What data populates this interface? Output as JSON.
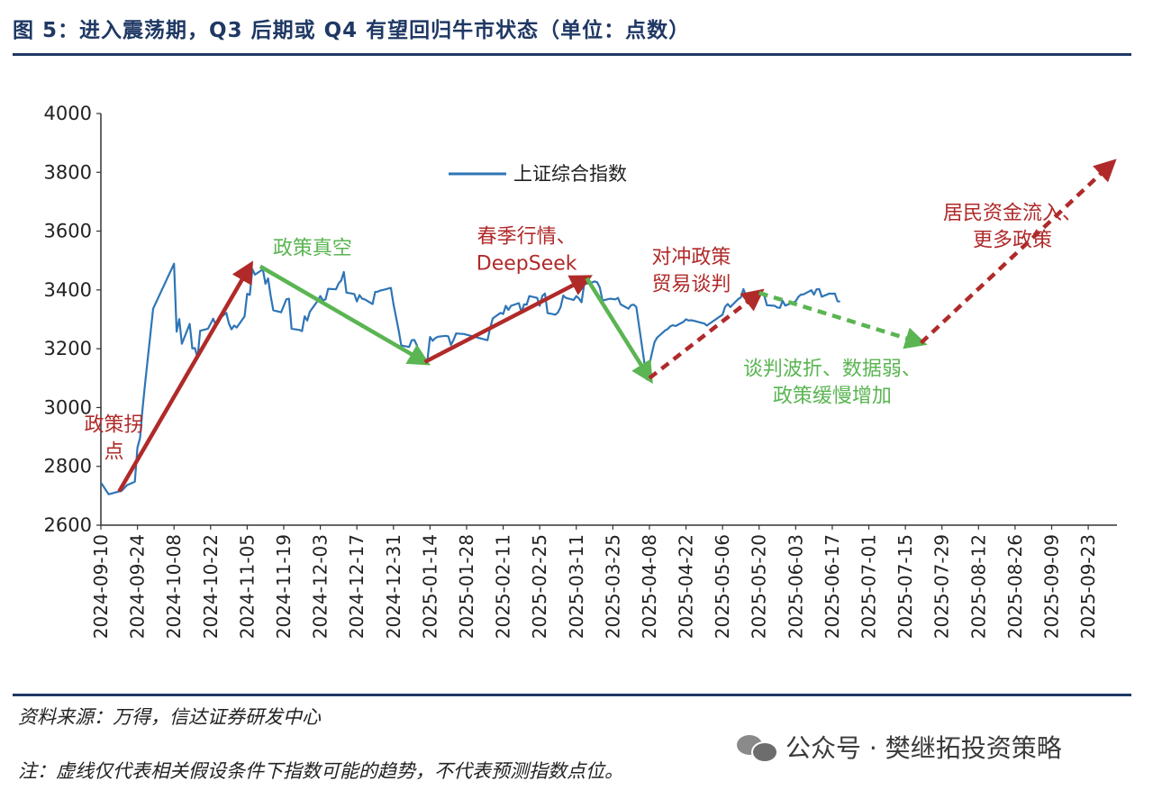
{
  "header": {
    "title": "图 5：进入震荡期，Q3 后期或 Q4 有望回归牛市状态（单位：点数）"
  },
  "footer": {
    "source": "资料来源：万得，信达证券研发中心",
    "note": "注：虚线仅代表相关假设条件下指数可能的趋势，不代表预测指数点位。"
  },
  "watermark": {
    "text": "公众号 · 樊继拓投资策略"
  },
  "colors": {
    "series": "#2e75b6",
    "red": "#b02a2a",
    "green": "#5ab552",
    "axis": "#333333",
    "title": "#1f3864"
  },
  "chart_data": {
    "type": "line",
    "title": "",
    "xlabel": "",
    "ylabel": "",
    "ylim": [
      2600,
      4000
    ],
    "yticks": [
      2600,
      2800,
      3000,
      3200,
      3400,
      3600,
      3800,
      4000
    ],
    "xlim": [
      "2024-09-10",
      "2025-10-04"
    ],
    "xticks": [
      "2024-09-10",
      "2024-09-24",
      "2024-10-08",
      "2024-10-22",
      "2024-11-05",
      "2024-11-19",
      "2024-12-03",
      "2024-12-17",
      "2024-12-31",
      "2025-01-14",
      "2025-01-28",
      "2025-02-11",
      "2025-02-25",
      "2025-03-11",
      "2025-03-25",
      "2025-04-08",
      "2025-04-22",
      "2025-05-06",
      "2025-05-20",
      "2025-06-03",
      "2025-06-17",
      "2025-07-01",
      "2025-07-15",
      "2025-07-29",
      "2025-08-12",
      "2025-08-26",
      "2025-09-09",
      "2025-09-23"
    ],
    "legend": {
      "position": "top-left",
      "label": "上证综合指数"
    },
    "series": [
      {
        "name": "上证综合指数",
        "points": [
          [
            "2024-09-10",
            2745
          ],
          [
            "2024-09-12",
            2718
          ],
          [
            "2024-09-13",
            2705
          ],
          [
            "2024-09-18",
            2717
          ],
          [
            "2024-09-20",
            2736
          ],
          [
            "2024-09-23",
            2748
          ],
          [
            "2024-09-24",
            2864
          ],
          [
            "2024-09-25",
            2897
          ],
          [
            "2024-09-26",
            3001
          ],
          [
            "2024-09-27",
            3088
          ],
          [
            "2024-09-30",
            3336
          ],
          [
            "2024-10-08",
            3489
          ],
          [
            "2024-10-09",
            3258
          ],
          [
            "2024-10-10",
            3301
          ],
          [
            "2024-10-11",
            3217
          ],
          [
            "2024-10-14",
            3284
          ],
          [
            "2024-10-15",
            3201
          ],
          [
            "2024-10-16",
            3202
          ],
          [
            "2024-10-17",
            3169
          ],
          [
            "2024-10-18",
            3261
          ],
          [
            "2024-10-21",
            3268
          ],
          [
            "2024-10-22",
            3285
          ],
          [
            "2024-10-23",
            3302
          ],
          [
            "2024-10-24",
            3280
          ],
          [
            "2024-10-25",
            3300
          ],
          [
            "2024-10-28",
            3322
          ],
          [
            "2024-10-29",
            3286
          ],
          [
            "2024-10-30",
            3266
          ],
          [
            "2024-10-31",
            3279
          ],
          [
            "2024-11-01",
            3272
          ],
          [
            "2024-11-04",
            3310
          ],
          [
            "2024-11-05",
            3387
          ],
          [
            "2024-11-06",
            3383
          ],
          [
            "2024-11-07",
            3470
          ],
          [
            "2024-11-08",
            3452
          ],
          [
            "2024-11-11",
            3470
          ],
          [
            "2024-11-12",
            3421
          ],
          [
            "2024-11-13",
            3439
          ],
          [
            "2024-11-14",
            3380
          ],
          [
            "2024-11-15",
            3331
          ],
          [
            "2024-11-18",
            3324
          ],
          [
            "2024-11-19",
            3346
          ],
          [
            "2024-11-20",
            3368
          ],
          [
            "2024-11-21",
            3370
          ],
          [
            "2024-11-22",
            3268
          ],
          [
            "2024-11-25",
            3264
          ],
          [
            "2024-11-26",
            3260
          ],
          [
            "2024-11-27",
            3310
          ],
          [
            "2024-11-28",
            3296
          ],
          [
            "2024-11-29",
            3326
          ],
          [
            "2024-12-02",
            3363
          ],
          [
            "2024-12-03",
            3379
          ],
          [
            "2024-12-04",
            3364
          ],
          [
            "2024-12-05",
            3368
          ],
          [
            "2024-12-06",
            3404
          ],
          [
            "2024-12-09",
            3402
          ],
          [
            "2024-12-10",
            3422
          ],
          [
            "2024-12-11",
            3432
          ],
          [
            "2024-12-12",
            3461
          ],
          [
            "2024-12-13",
            3391
          ],
          [
            "2024-12-16",
            3386
          ],
          [
            "2024-12-17",
            3361
          ],
          [
            "2024-12-18",
            3382
          ],
          [
            "2024-12-19",
            3370
          ],
          [
            "2024-12-20",
            3368
          ],
          [
            "2024-12-23",
            3352
          ],
          [
            "2024-12-24",
            3393
          ],
          [
            "2024-12-25",
            3394
          ],
          [
            "2024-12-26",
            3398
          ],
          [
            "2024-12-27",
            3400
          ],
          [
            "2024-12-30",
            3407
          ],
          [
            "2024-12-31",
            3352
          ],
          [
            "2025-01-02",
            3262
          ],
          [
            "2025-01-03",
            3211
          ],
          [
            "2025-01-06",
            3206
          ],
          [
            "2025-01-07",
            3229
          ],
          [
            "2025-01-08",
            3230
          ],
          [
            "2025-01-09",
            3211
          ],
          [
            "2025-01-10",
            3169
          ],
          [
            "2025-01-13",
            3161
          ],
          [
            "2025-01-14",
            3240
          ],
          [
            "2025-01-15",
            3227
          ],
          [
            "2025-01-16",
            3236
          ],
          [
            "2025-01-17",
            3241
          ],
          [
            "2025-01-20",
            3244
          ],
          [
            "2025-01-21",
            3242
          ],
          [
            "2025-01-22",
            3213
          ],
          [
            "2025-01-23",
            3230
          ],
          [
            "2025-01-24",
            3252
          ],
          [
            "2025-01-27",
            3250
          ],
          [
            "2025-02-05",
            3229
          ],
          [
            "2025-02-06",
            3270
          ],
          [
            "2025-02-07",
            3303
          ],
          [
            "2025-02-10",
            3322
          ],
          [
            "2025-02-11",
            3318
          ],
          [
            "2025-02-12",
            3346
          ],
          [
            "2025-02-13",
            3332
          ],
          [
            "2025-02-14",
            3346
          ],
          [
            "2025-02-17",
            3355
          ],
          [
            "2025-02-18",
            3324
          ],
          [
            "2025-02-19",
            3351
          ],
          [
            "2025-02-20",
            3350
          ],
          [
            "2025-02-21",
            3379
          ],
          [
            "2025-02-24",
            3373
          ],
          [
            "2025-02-25",
            3346
          ],
          [
            "2025-02-26",
            3380
          ],
          [
            "2025-02-27",
            3388
          ],
          [
            "2025-02-28",
            3321
          ],
          [
            "2025-03-03",
            3316
          ],
          [
            "2025-03-04",
            3324
          ],
          [
            "2025-03-05",
            3342
          ],
          [
            "2025-03-06",
            3381
          ],
          [
            "2025-03-07",
            3373
          ],
          [
            "2025-03-10",
            3366
          ],
          [
            "2025-03-11",
            3379
          ],
          [
            "2025-03-12",
            3371
          ],
          [
            "2025-03-13",
            3358
          ],
          [
            "2025-03-14",
            3419
          ],
          [
            "2025-03-17",
            3426
          ],
          [
            "2025-03-18",
            3429
          ],
          [
            "2025-03-19",
            3426
          ],
          [
            "2025-03-20",
            3408
          ],
          [
            "2025-03-21",
            3364
          ],
          [
            "2025-03-24",
            3370
          ],
          [
            "2025-03-25",
            3369
          ],
          [
            "2025-03-26",
            3368
          ],
          [
            "2025-03-27",
            3373
          ],
          [
            "2025-03-28",
            3351
          ],
          [
            "2025-03-31",
            3336
          ],
          [
            "2025-04-01",
            3348
          ],
          [
            "2025-04-02",
            3350
          ],
          [
            "2025-04-03",
            3342
          ],
          [
            "2025-04-07",
            3096
          ],
          [
            "2025-04-08",
            3145
          ],
          [
            "2025-04-09",
            3186
          ],
          [
            "2025-04-10",
            3223
          ],
          [
            "2025-04-11",
            3238
          ],
          [
            "2025-04-14",
            3262
          ],
          [
            "2025-04-15",
            3267
          ],
          [
            "2025-04-16",
            3276
          ],
          [
            "2025-04-17",
            3280
          ],
          [
            "2025-04-18",
            3277
          ],
          [
            "2025-04-21",
            3291
          ],
          [
            "2025-04-22",
            3300
          ],
          [
            "2025-04-23",
            3296
          ],
          [
            "2025-04-24",
            3297
          ],
          [
            "2025-04-25",
            3295
          ],
          [
            "2025-04-28",
            3288
          ],
          [
            "2025-04-29",
            3286
          ],
          [
            "2025-04-30",
            3279
          ],
          [
            "2025-05-06",
            3316
          ],
          [
            "2025-05-07",
            3343
          ],
          [
            "2025-05-08",
            3352
          ],
          [
            "2025-05-09",
            3342
          ],
          [
            "2025-05-12",
            3369
          ],
          [
            "2025-05-13",
            3374
          ],
          [
            "2025-05-14",
            3403
          ],
          [
            "2025-05-15",
            3380
          ],
          [
            "2025-05-16",
            3367
          ],
          [
            "2025-05-19",
            3367
          ],
          [
            "2025-05-20",
            3381
          ],
          [
            "2025-05-21",
            3387
          ],
          [
            "2025-05-22",
            3380
          ],
          [
            "2025-05-23",
            3348
          ],
          [
            "2025-05-26",
            3346
          ],
          [
            "2025-05-27",
            3340
          ],
          [
            "2025-05-28",
            3339
          ],
          [
            "2025-05-29",
            3363
          ],
          [
            "2025-05-30",
            3347
          ],
          [
            "2025-06-03",
            3361
          ],
          [
            "2025-06-04",
            3376
          ],
          [
            "2025-06-05",
            3384
          ],
          [
            "2025-06-06",
            3385
          ],
          [
            "2025-06-09",
            3399
          ],
          [
            "2025-06-10",
            3384
          ],
          [
            "2025-06-11",
            3402
          ],
          [
            "2025-06-12",
            3403
          ],
          [
            "2025-06-13",
            3377
          ],
          [
            "2025-06-16",
            3388
          ],
          [
            "2025-06-17",
            3387
          ],
          [
            "2025-06-18",
            3388
          ],
          [
            "2025-06-19",
            3362
          ],
          [
            "2025-06-20",
            3360
          ]
        ]
      }
    ],
    "arrows": [
      {
        "color": "red",
        "style": "solid",
        "from": [
          "2024-09-17",
          2715
        ],
        "to": [
          "2024-11-06",
          3480
        ]
      },
      {
        "color": "green",
        "style": "solid",
        "from": [
          "2024-11-10",
          3480
        ],
        "to": [
          "2025-01-12",
          3155
        ]
      },
      {
        "color": "red",
        "style": "solid",
        "from": [
          "2025-01-12",
          3155
        ],
        "to": [
          "2025-03-15",
          3440
        ]
      },
      {
        "color": "green",
        "style": "solid",
        "from": [
          "2025-03-15",
          3440
        ],
        "to": [
          "2025-04-08",
          3100
        ]
      },
      {
        "color": "red",
        "style": "dashed",
        "from": [
          "2025-04-08",
          3100
        ],
        "to": [
          "2025-05-20",
          3390
        ]
      },
      {
        "color": "green",
        "style": "dashed",
        "from": [
          "2025-05-20",
          3390
        ],
        "to": [
          "2025-07-21",
          3220
        ]
      },
      {
        "color": "red",
        "style": "dashed",
        "from": [
          "2025-07-21",
          3220
        ],
        "to": [
          "2025-10-02",
          3830
        ]
      }
    ],
    "annotations": [
      {
        "id": "ann-policy-turn",
        "lines": [
          "政策拐",
          "点"
        ],
        "color": "red",
        "at": [
          "2024-09-15",
          2920
        ]
      },
      {
        "id": "ann-policy-vacuum",
        "lines": [
          "政策真空"
        ],
        "color": "green",
        "at": [
          "2024-11-30",
          3520
        ]
      },
      {
        "id": "ann-spring",
        "lines": [
          "春季行情、",
          "DeepSeek"
        ],
        "color": "red",
        "at": [
          "2025-02-20",
          3560
        ]
      },
      {
        "id": "ann-hedge",
        "lines": [
          "对冲政策",
          "贸易谈判"
        ],
        "color": "red",
        "at": [
          "2025-04-24",
          3490
        ]
      },
      {
        "id": "ann-negotiation",
        "lines": [
          "谈判波折、数据弱、",
          "政策缓慢增加"
        ],
        "color": "green",
        "at": [
          "2025-06-17",
          3110
        ]
      },
      {
        "id": "ann-inflow",
        "lines": [
          "居民资金流入、",
          "更多政策"
        ],
        "color": "red",
        "at": [
          "2025-08-25",
          3640
        ]
      }
    ]
  }
}
